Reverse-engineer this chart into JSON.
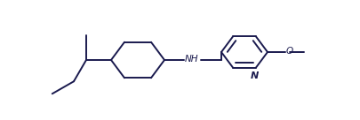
{
  "bg_color": "#ffffff",
  "line_color": "#1a1a4e",
  "lw": 1.4,
  "fs": 7.5,
  "fig_w": 4.05,
  "fig_h": 1.36,
  "dpi": 100,
  "xlim": [
    0,
    4.05
  ],
  "ylim": [
    0,
    1.36
  ]
}
